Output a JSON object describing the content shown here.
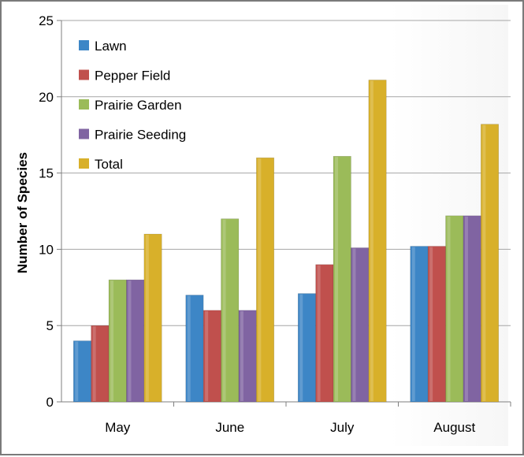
{
  "chart_data": {
    "type": "bar",
    "title": "",
    "xlabel": "",
    "ylabel": "Number of Species",
    "ylim": [
      0,
      25
    ],
    "yticks": [
      0,
      5,
      10,
      15,
      20,
      25
    ],
    "grid": true,
    "legend_position": "top-left",
    "categories": [
      "May",
      "June",
      "July",
      "August"
    ],
    "series": [
      {
        "name": "Lawn",
        "color": "#3d86c6",
        "values": [
          4,
          7,
          7.1,
          10.2
        ]
      },
      {
        "name": "Pepper Field",
        "color": "#c0504d",
        "values": [
          5,
          6,
          9,
          10.2
        ]
      },
      {
        "name": "Prairie Garden",
        "color": "#9bbb59",
        "values": [
          8,
          12,
          16.1,
          12.2
        ]
      },
      {
        "name": "Prairie Seeding",
        "color": "#8064a2",
        "values": [
          8,
          6,
          10.1,
          12.2
        ]
      },
      {
        "name": "Total",
        "color": "#d8b02a",
        "values": [
          11,
          16,
          21.1,
          18.2
        ]
      }
    ]
  }
}
